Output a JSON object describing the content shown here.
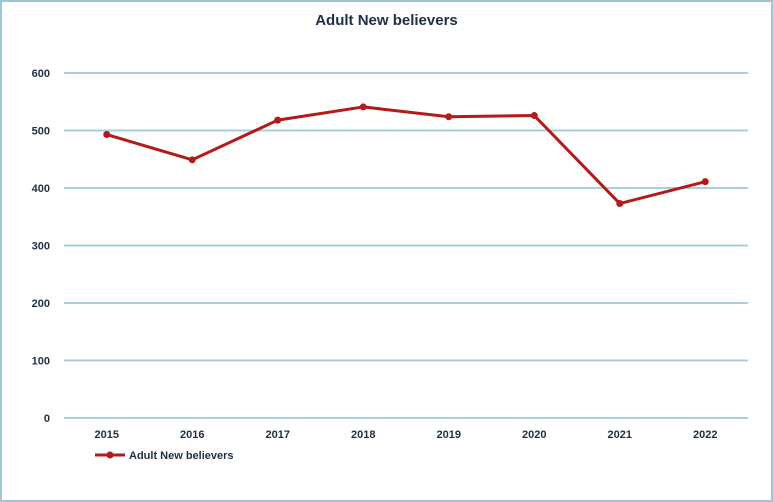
{
  "chart_data": {
    "type": "line",
    "title": "Adult New believers",
    "categories": [
      "2015",
      "2016",
      "2017",
      "2018",
      "2019",
      "2020",
      "2021",
      "2022"
    ],
    "series": [
      {
        "name": "Adult New believers",
        "values": [
          493,
          449,
          518,
          541,
          524,
          526,
          373,
          411
        ]
      }
    ],
    "y_ticks": [
      "0",
      "100",
      "200",
      "300",
      "400",
      "500",
      "600"
    ],
    "ylim": [
      0,
      600
    ],
    "grid": true,
    "legend_position": "bottom-left",
    "line_color": "#b31b1b",
    "grid_color": "#a8cfdf"
  }
}
